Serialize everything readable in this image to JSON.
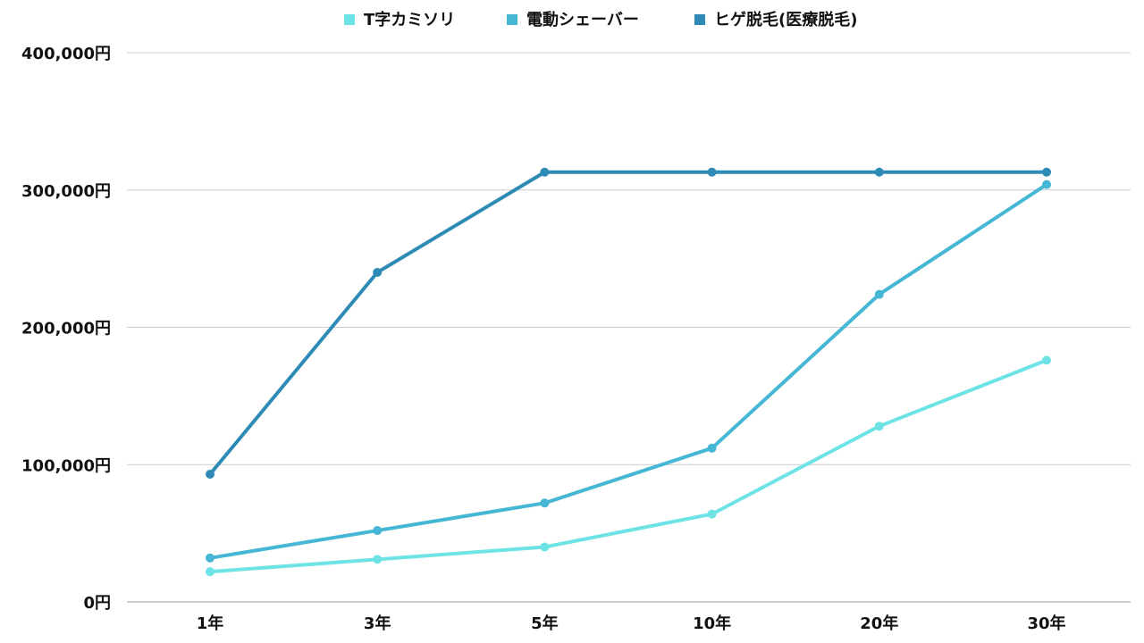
{
  "chart_data": {
    "type": "line",
    "title": "",
    "xlabel": "",
    "ylabel": "",
    "categories": [
      "1年",
      "3年",
      "5年",
      "10年",
      "20年",
      "30年"
    ],
    "y_tick_labels": [
      "0円",
      "100,000円",
      "200,000円",
      "300,000円",
      "400,000円"
    ],
    "y_ticks": [
      0,
      100000,
      200000,
      300000,
      400000
    ],
    "ylim": [
      0,
      400000
    ],
    "grid": true,
    "legend_position": "top",
    "series": [
      {
        "name": "T字カミソリ",
        "color": "#6ee3e6",
        "values": [
          22000,
          31000,
          40000,
          64000,
          128000,
          176000
        ]
      },
      {
        "name": "電動シェーバー",
        "color": "#45b7d4",
        "values": [
          32000,
          52000,
          72000,
          112000,
          224000,
          304000
        ]
      },
      {
        "name": "ヒゲ脱毛(医療脱毛)",
        "color": "#2e8bb5",
        "values": [
          93000,
          240000,
          313000,
          313000,
          313000,
          313000
        ]
      }
    ]
  }
}
